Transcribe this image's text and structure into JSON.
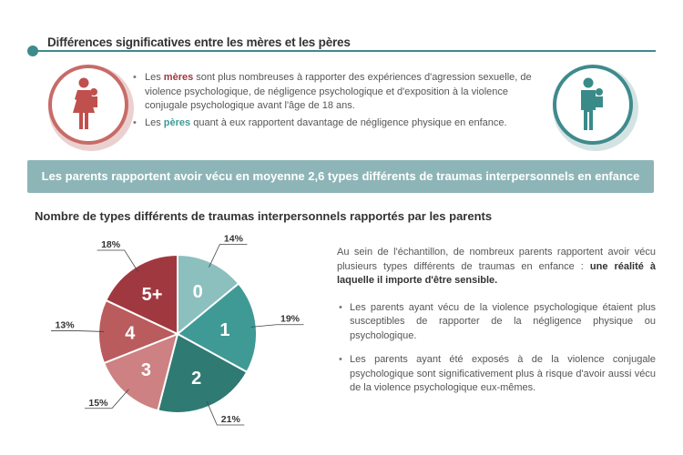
{
  "header": {
    "title": "Différences significatives entre les mères et les pères"
  },
  "icons": {
    "mother": "mother-with-child-icon",
    "father": "father-with-child-icon"
  },
  "bullets": [
    {
      "prefix": "Les ",
      "highlight": "mères",
      "text": " sont plus nombreuses à rapporter des expériences d'agression sexuelle, de  violence psychologique, de négligence psychologique et d'exposition à la violence  conjugale psychologique avant l'âge de 18 ans."
    },
    {
      "prefix": "Les ",
      "highlight": "pères",
      "text": " quant à eux rapportent davantage de négligence physique en enfance."
    }
  ],
  "banner": "Les parents rapportent avoir vécu en moyenne 2,6 types différents de traumas interpersonnels en enfance",
  "subtitle": "Nombre de types différents de traumas interpersonnels rapportés par les parents",
  "chart_data": {
    "type": "pie",
    "title": "Nombre de types différents de traumas interpersonnels rapportés par les parents",
    "categories": [
      "0",
      "1",
      "2",
      "3",
      "4",
      "5+"
    ],
    "values": [
      14,
      19,
      21,
      15,
      13,
      18
    ],
    "labels": [
      "14%",
      "19%",
      "21%",
      "15%",
      "13%",
      "18%"
    ],
    "colors": [
      "#8bc0bf",
      "#3f9a96",
      "#2f7a72",
      "#cd8182",
      "#ba5b5d",
      "#a0393f"
    ],
    "start": "top",
    "direction": "clockwise"
  },
  "right_text": {
    "intro": "Au sein de l'échantillon, de nombreux parents rapportent avoir vécu plusieurs types différents de traumas en enfance : ",
    "intro_bold": "une réalité à laquelle il importe d'être sensible.",
    "bullets": [
      "Les parents ayant vécu de la violence psychologique étaient plus susceptibles de rapporter de la négligence physique ou psychologique.",
      "Les parents ayant été exposés à de la violence conjugale psychologique sont significativement plus à risque d'avoir aussi vécu de la violence psychologique eux-mêmes."
    ]
  },
  "colors": {
    "teal": "#3f8a8c",
    "red": "#a0393f",
    "banner": "#8db5b8"
  }
}
